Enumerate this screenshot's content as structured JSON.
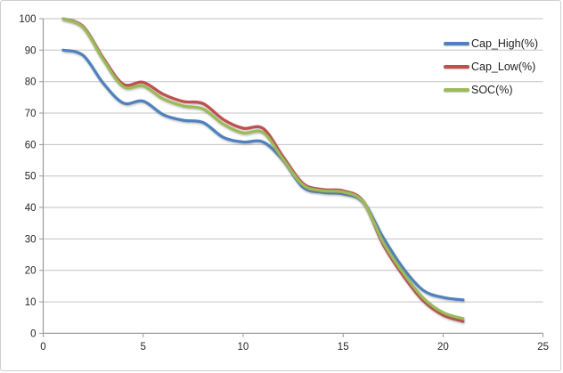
{
  "chart_data": {
    "type": "line",
    "smooth": true,
    "x": [
      1,
      2,
      3,
      4,
      5,
      6,
      7,
      8,
      9,
      10,
      11,
      12,
      13,
      14,
      15,
      16,
      17,
      18,
      19,
      20,
      21
    ],
    "series": [
      {
        "name": "Cap_High(%)",
        "color": "#4f81bd",
        "values": [
          90.0,
          88.3,
          79.5,
          73.2,
          73.8,
          69.5,
          67.7,
          67.0,
          62.3,
          60.8,
          60.8,
          55.0,
          46.4,
          44.8,
          44.3,
          41.7,
          30.5,
          20.7,
          13.7,
          11.4,
          10.6
        ]
      },
      {
        "name": "Cap_Low(%)",
        "color": "#c0504d",
        "values": [
          100.0,
          97.5,
          87.5,
          79.2,
          79.8,
          76.0,
          73.7,
          73.0,
          68.0,
          65.2,
          65.1,
          56.1,
          47.6,
          45.7,
          45.3,
          42.0,
          28.3,
          18.4,
          10.4,
          5.8,
          3.8
        ]
      },
      {
        "name": "SOC(%)",
        "color": "#9bbb59",
        "values": [
          100.0,
          97.2,
          87.0,
          78.4,
          78.6,
          74.5,
          72.3,
          71.3,
          66.5,
          63.7,
          63.8,
          55.3,
          47.1,
          45.3,
          44.9,
          41.8,
          29.0,
          19.3,
          11.3,
          6.6,
          4.7
        ]
      }
    ],
    "xlabel": "",
    "ylabel": "",
    "xlim": [
      0,
      25
    ],
    "ylim": [
      0,
      100
    ],
    "x_ticks": [
      0,
      5,
      10,
      15,
      20,
      25
    ],
    "y_ticks": [
      0,
      10,
      20,
      30,
      40,
      50,
      60,
      70,
      80,
      90,
      100
    ],
    "x_tick_labels": [
      "0",
      "5",
      "10",
      "15",
      "20",
      "25"
    ],
    "y_tick_labels": [
      "0",
      "10",
      "20",
      "30",
      "40",
      "50",
      "60",
      "70",
      "80",
      "90",
      "100"
    ],
    "grid": "horizontal",
    "legend_position": "inside-top-right",
    "colors": {
      "grid": "#c3c3c3",
      "axis": "#9a9a9a",
      "tick_text": "#262626",
      "background": "#ffffff",
      "border": "#cfcfcf"
    }
  }
}
